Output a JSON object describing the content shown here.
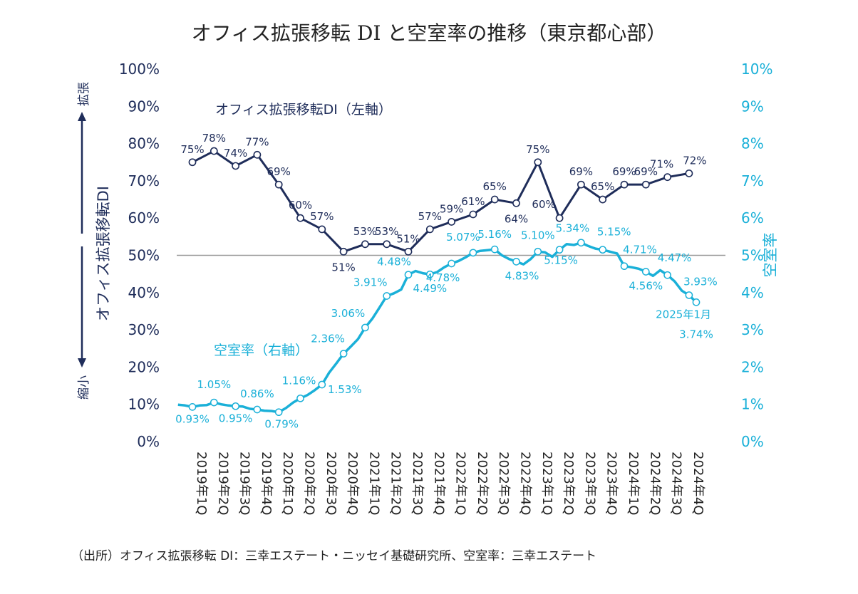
{
  "chart_data": {
    "type": "line",
    "title": "オフィス拡張移転 DI と空室率の推移（東京都心部）",
    "source": "（出所）オフィス拡張移転 DI：三幸エステート・ニッセイ基礎研究所、空室率：三幸エステート",
    "left_axis": {
      "title": "オフィス拡張移転DI",
      "range": [
        0,
        100
      ],
      "ticks": [
        "0%",
        "10%",
        "20%",
        "30%",
        "40%",
        "50%",
        "60%",
        "70%",
        "80%",
        "90%",
        "100%"
      ],
      "up_label": "拡張",
      "down_label": "縮小"
    },
    "right_axis": {
      "title": "空室率",
      "range": [
        0,
        10
      ],
      "ticks": [
        "0%",
        "1%",
        "2%",
        "3%",
        "4%",
        "5%",
        "6%",
        "7%",
        "8%",
        "9%",
        "10%"
      ]
    },
    "reference_line": 50,
    "categories": [
      "2019年1Q",
      "2019年2Q",
      "2019年3Q",
      "2019年4Q",
      "2020年1Q",
      "2020年2Q",
      "2020年3Q",
      "2020年4Q",
      "2021年1Q",
      "2021年2Q",
      "2021年3Q",
      "2021年4Q",
      "2022年1Q",
      "2022年2Q",
      "2022年3Q",
      "2022年4Q",
      "2023年1Q",
      "2023年2Q",
      "2023年3Q",
      "2023年4Q",
      "2024年1Q",
      "2024年2Q",
      "2024年3Q",
      "2024年4Q"
    ],
    "di_series": {
      "name": "オフィス拡張移転DI（左軸）",
      "values": [
        75,
        78,
        74,
        77,
        69,
        60,
        57,
        51,
        53,
        53,
        51,
        57,
        59,
        61,
        65,
        64,
        75,
        60,
        69,
        65,
        69,
        69,
        71,
        72
      ],
      "labels": [
        "75%",
        "78%",
        "74%",
        "77%",
        "69%",
        "60%",
        "57%",
        "51%",
        "53%",
        "53%",
        "51%",
        "57%",
        "59%",
        "61%",
        "65%",
        "64%",
        "75%",
        "60%",
        "69%",
        "65%",
        "69%",
        "69%",
        "71%",
        "72%"
      ]
    },
    "vacancy_series": {
      "name": "空室率（右軸）",
      "monthly_values": [
        0.99,
        0.97,
        0.93,
        0.97,
        0.98,
        1.05,
        1.0,
        0.97,
        0.95,
        0.94,
        0.88,
        0.86,
        0.83,
        0.82,
        0.79,
        0.9,
        1.05,
        1.16,
        1.25,
        1.38,
        1.53,
        1.85,
        2.1,
        2.36,
        2.55,
        2.75,
        3.06,
        3.3,
        3.6,
        3.91,
        3.98,
        4.08,
        4.48,
        4.58,
        4.52,
        4.49,
        4.55,
        4.68,
        4.78,
        4.85,
        4.95,
        5.07,
        5.12,
        5.14,
        5.16,
        5.0,
        4.9,
        4.83,
        4.76,
        4.9,
        5.1,
        5.08,
        4.96,
        5.15,
        5.3,
        5.28,
        5.34,
        5.25,
        5.18,
        5.15,
        5.1,
        5.05,
        4.71,
        4.68,
        4.64,
        4.56,
        4.45,
        4.6,
        4.47,
        4.3,
        4.05,
        3.93,
        3.74
      ],
      "labeled_points": [
        {
          "index": 2,
          "label": "0.93%"
        },
        {
          "index": 5,
          "label": "1.05%"
        },
        {
          "index": 8,
          "label": "0.95%"
        },
        {
          "index": 11,
          "label": "0.86%"
        },
        {
          "index": 14,
          "label": "0.79%"
        },
        {
          "index": 17,
          "label": "1.16%"
        },
        {
          "index": 20,
          "label": "1.53%"
        },
        {
          "index": 23,
          "label": "2.36%"
        },
        {
          "index": 26,
          "label": "3.06%"
        },
        {
          "index": 29,
          "label": "3.91%"
        },
        {
          "index": 32,
          "label": "4.48%"
        },
        {
          "index": 35,
          "label": "4.49%"
        },
        {
          "index": 38,
          "label": "4.78%"
        },
        {
          "index": 41,
          "label": "5.07%"
        },
        {
          "index": 44,
          "label": "5.16%"
        },
        {
          "index": 47,
          "label": "4.83%"
        },
        {
          "index": 50,
          "label": "5.10%"
        },
        {
          "index": 53,
          "label": "5.15%"
        },
        {
          "index": 56,
          "label": "5.34%"
        },
        {
          "index": 59,
          "label": "5.15%"
        },
        {
          "index": 62,
          "label": "4.71%"
        },
        {
          "index": 65,
          "label": "4.56%"
        },
        {
          "index": 68,
          "label": "4.47%"
        },
        {
          "index": 71,
          "label": "3.93%"
        },
        {
          "index": 72,
          "label": "3.74%"
        }
      ],
      "final_point_note": "2025年1月"
    },
    "colors": {
      "di": "#1f2d5a",
      "vacancy": "#1ab0d8",
      "reference": "#999999",
      "text": "#222222"
    }
  }
}
